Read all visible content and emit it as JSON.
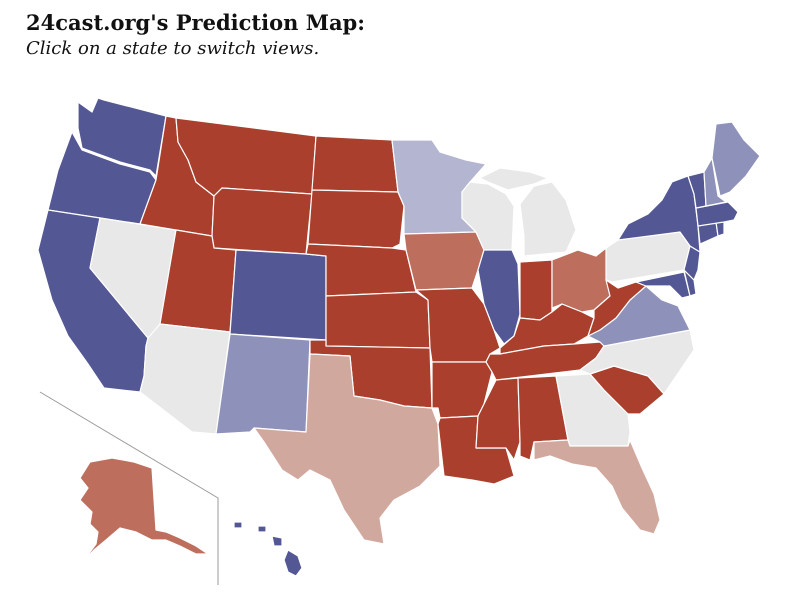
{
  "header": {
    "title": "24cast.org's Prediction Map:",
    "subtitle": "Click on a state to switch views."
  },
  "legend_colors": {
    "safe_d": "#535794",
    "likely_d": "#8e91ba",
    "lean_d": "#b3b5d1",
    "tossup": "#e8e8e8",
    "lean_r": "#d1a89e",
    "likely_r": "#bd6e5d",
    "safe_r": "#a93f2c"
  },
  "states": [
    {
      "code": "WA",
      "rating": "safe_d"
    },
    {
      "code": "OR",
      "rating": "safe_d"
    },
    {
      "code": "CA",
      "rating": "safe_d"
    },
    {
      "code": "NV",
      "rating": "tossup"
    },
    {
      "code": "ID",
      "rating": "safe_r"
    },
    {
      "code": "MT",
      "rating": "safe_r"
    },
    {
      "code": "WY",
      "rating": "safe_r"
    },
    {
      "code": "UT",
      "rating": "safe_r"
    },
    {
      "code": "AZ",
      "rating": "tossup"
    },
    {
      "code": "CO",
      "rating": "safe_d"
    },
    {
      "code": "NM",
      "rating": "likely_d"
    },
    {
      "code": "ND",
      "rating": "safe_r"
    },
    {
      "code": "SD",
      "rating": "safe_r"
    },
    {
      "code": "NE",
      "rating": "safe_r"
    },
    {
      "code": "KS",
      "rating": "safe_r"
    },
    {
      "code": "OK",
      "rating": "safe_r"
    },
    {
      "code": "TX",
      "rating": "lean_r"
    },
    {
      "code": "MN",
      "rating": "lean_d"
    },
    {
      "code": "IA",
      "rating": "likely_r"
    },
    {
      "code": "MO",
      "rating": "safe_r"
    },
    {
      "code": "AR",
      "rating": "safe_r"
    },
    {
      "code": "LA",
      "rating": "safe_r"
    },
    {
      "code": "WI",
      "rating": "tossup"
    },
    {
      "code": "MI",
      "rating": "tossup"
    },
    {
      "code": "IL",
      "rating": "safe_d"
    },
    {
      "code": "IN",
      "rating": "safe_r"
    },
    {
      "code": "OH",
      "rating": "likely_r"
    },
    {
      "code": "KY",
      "rating": "safe_r"
    },
    {
      "code": "TN",
      "rating": "safe_r"
    },
    {
      "code": "MS",
      "rating": "safe_r"
    },
    {
      "code": "AL",
      "rating": "safe_r"
    },
    {
      "code": "GA",
      "rating": "tossup"
    },
    {
      "code": "FL",
      "rating": "lean_r"
    },
    {
      "code": "SC",
      "rating": "safe_r"
    },
    {
      "code": "NC",
      "rating": "tossup"
    },
    {
      "code": "VA",
      "rating": "likely_d"
    },
    {
      "code": "WV",
      "rating": "safe_r"
    },
    {
      "code": "PA",
      "rating": "tossup"
    },
    {
      "code": "NY",
      "rating": "safe_d"
    },
    {
      "code": "VT",
      "rating": "safe_d"
    },
    {
      "code": "NH",
      "rating": "likely_d"
    },
    {
      "code": "ME",
      "rating": "likely_d"
    },
    {
      "code": "MA",
      "rating": "safe_d"
    },
    {
      "code": "CT",
      "rating": "safe_d"
    },
    {
      "code": "RI",
      "rating": "safe_d"
    },
    {
      "code": "NJ",
      "rating": "safe_d"
    },
    {
      "code": "DE",
      "rating": "safe_d"
    },
    {
      "code": "MD",
      "rating": "safe_d"
    },
    {
      "code": "AK",
      "rating": "likely_r"
    },
    {
      "code": "HI",
      "rating": "safe_d"
    }
  ]
}
